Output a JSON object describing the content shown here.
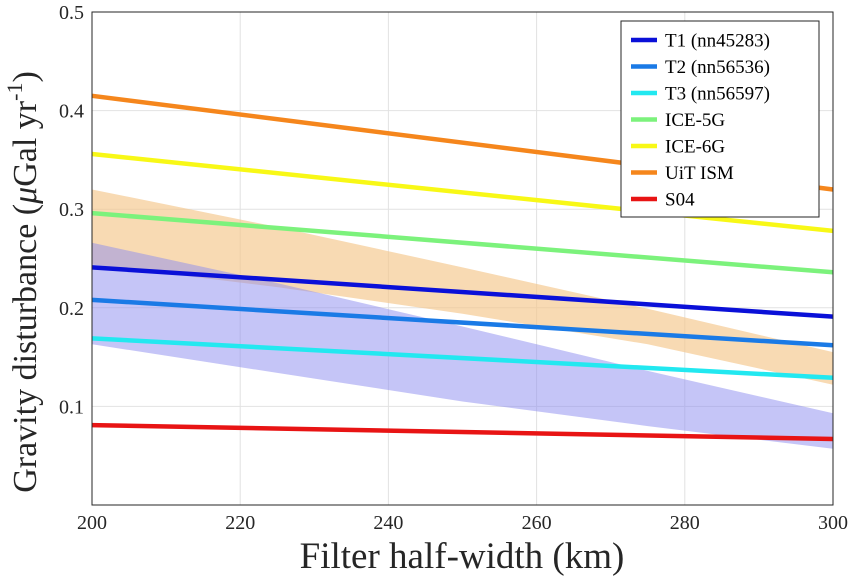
{
  "chart_data": {
    "type": "line",
    "title": "",
    "xlabel": "Filter half-width (km)",
    "ylabel": "Gravity disturbance (μGal yr⁻¹)",
    "ylabel_parts": {
      "pre": "Gravity disturbance (",
      "mu": "μ",
      "mid": "Gal  yr",
      "sup": "-1",
      "post": ")"
    },
    "xlim": [
      200,
      300
    ],
    "ylim": [
      0,
      0.5
    ],
    "xticks": [
      200,
      220,
      240,
      260,
      280,
      300
    ],
    "yticks": [
      0.1,
      0.2,
      0.3,
      0.4,
      0.5
    ],
    "grid": true,
    "legend_position": "top-right",
    "series": [
      {
        "name": "T1 (nn45283)",
        "color": "#0a10d8",
        "x": [
          200,
          300
        ],
        "values": [
          0.241,
          0.191
        ]
      },
      {
        "name": "T2 (nn56536)",
        "color": "#1a7ae6",
        "x": [
          200,
          300
        ],
        "values": [
          0.208,
          0.162
        ]
      },
      {
        "name": "T3 (nn56597)",
        "color": "#22e8f0",
        "x": [
          200,
          300
        ],
        "values": [
          0.169,
          0.129
        ]
      },
      {
        "name": "ICE-5G",
        "color": "#7cf27c",
        "x": [
          200,
          300
        ],
        "values": [
          0.296,
          0.236
        ]
      },
      {
        "name": "ICE-6G",
        "color": "#f8f816",
        "x": [
          200,
          300
        ],
        "values": [
          0.356,
          0.278
        ]
      },
      {
        "name": "UiT ISM",
        "color": "#f5861c",
        "x": [
          200,
          300
        ],
        "values": [
          0.415,
          0.32
        ]
      },
      {
        "name": "S04",
        "color": "#e81414",
        "x": [
          200,
          300
        ],
        "values": [
          0.081,
          0.067
        ]
      }
    ],
    "bands": [
      {
        "color": "#f5c68a",
        "opacity": 0.65,
        "x": [
          200,
          225,
          250,
          275,
          300
        ],
        "upper": [
          0.32,
          0.282,
          0.241,
          0.199,
          0.155
        ],
        "lower": [
          0.244,
          0.221,
          0.194,
          0.163,
          0.122
        ]
      },
      {
        "color": "#8c8cf0",
        "opacity": 0.5,
        "x": [
          200,
          225,
          250,
          275,
          300
        ],
        "upper": [
          0.266,
          0.225,
          0.181,
          0.136,
          0.093
        ],
        "lower": [
          0.163,
          0.134,
          0.105,
          0.08,
          0.057
        ]
      }
    ]
  }
}
